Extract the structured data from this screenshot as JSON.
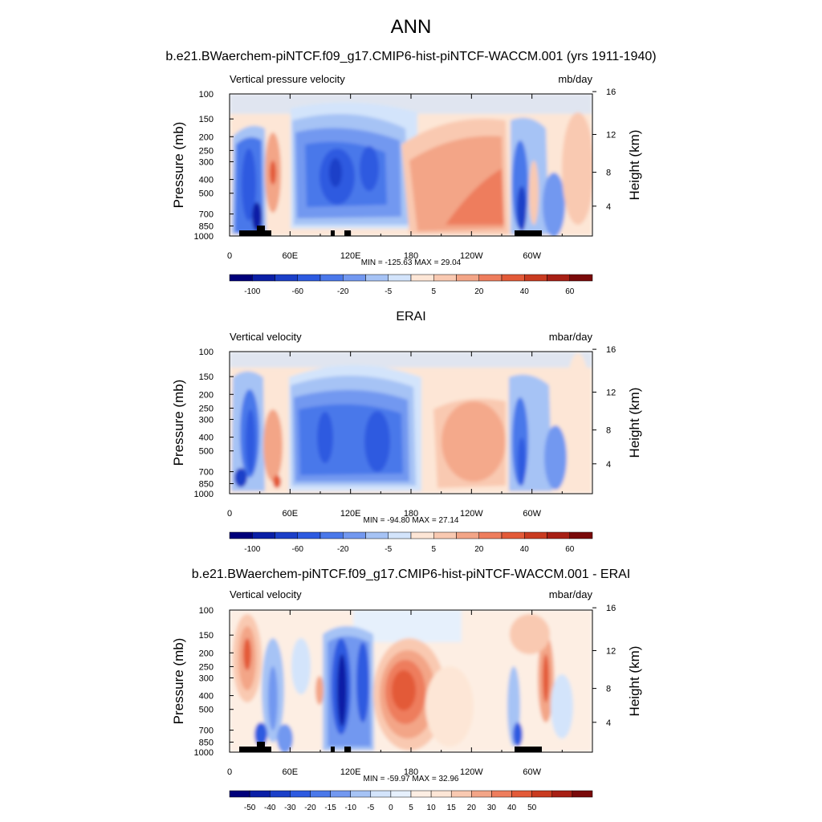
{
  "page": {
    "title": "ANN",
    "titles": [
      "b.e21.BWaerchem-piNTCF.f09_g17.CMIP6-hist-piNTCF-WACCM.001 (yrs 1911-1940)",
      "ERAI",
      "b.e21.BWaerchem-piNTCF.f09_g17.CMIP6-hist-piNTCF-WACCM.001 - ERAI"
    ]
  },
  "axes": {
    "ylabel_left": "Pressure (mb)",
    "ylabel_right": "Height (km)",
    "pressure_ticks": [
      "100",
      "150",
      "200",
      "250",
      "300",
      "400",
      "500",
      "700",
      "850",
      "1000"
    ],
    "height_ticks": [
      "16",
      "12",
      "8",
      "4"
    ],
    "lon_ticks": [
      "0",
      "60E",
      "120E",
      "180",
      "120W",
      "60W"
    ]
  },
  "panels": [
    {
      "var_label": "Vertical pressure velocity",
      "units": "mb/day",
      "minmax": "MIN = -125.63  MAX =  29.04",
      "colorbar_labels": [
        "-100",
        "-60",
        "-20",
        "-5",
        "5",
        "20",
        "40",
        "60"
      ]
    },
    {
      "var_label": "Vertical velocity",
      "units": "mbar/day",
      "minmax": "MIN = -94.80  MAX =  27.14",
      "colorbar_labels": [
        "-100",
        "-60",
        "-20",
        "-5",
        "5",
        "20",
        "40",
        "60"
      ]
    },
    {
      "var_label": "Vertical velocity",
      "units": "mbar/day",
      "minmax": "MIN = -59.97  MAX =  32.96",
      "colorbar_labels": [
        "-50",
        "-40",
        "-30",
        "-20",
        "-15",
        "-10",
        "-5",
        "0",
        "5",
        "10",
        "15",
        "20",
        "30",
        "40",
        "50"
      ]
    }
  ],
  "colors": {
    "colorbar_16": [
      "#00007a",
      "#0a1fa6",
      "#1b3fc8",
      "#2d5ae0",
      "#4a78ea",
      "#7298f0",
      "#a6c3f5",
      "#d3e4fb",
      "#fde6d6",
      "#f9c9b1",
      "#f3a587",
      "#ee7d5d",
      "#e35a38",
      "#c93b20",
      "#a71f14",
      "#7a0a0a"
    ],
    "colorbar_18": [
      "#00007a",
      "#0a1fa6",
      "#1b3fc8",
      "#2d5ae0",
      "#4a78ea",
      "#7298f0",
      "#a6c3f5",
      "#d3e4fb",
      "#e6f0fc",
      "#fdeee3",
      "#fde6d6",
      "#f9c9b1",
      "#f3a587",
      "#ee7d5d",
      "#e35a38",
      "#c93b20",
      "#a71f14",
      "#7a0a0a"
    ]
  },
  "chart_data": [
    {
      "type": "heatmap",
      "title": "b.e21.BWaerchem-piNTCF.f09_g17.CMIP6-hist-piNTCF-WACCM.001 (yrs 1911-1940)",
      "ylabel": "Pressure (mb)",
      "y2label": "Height (km)",
      "xticks": [
        "0",
        "60E",
        "120E",
        "180",
        "120W",
        "60W"
      ],
      "yticks": [
        100,
        150,
        200,
        250,
        300,
        400,
        500,
        700,
        850,
        1000
      ],
      "ylim": [
        1000,
        100
      ],
      "levels": [
        -100,
        -60,
        -20,
        -5,
        5,
        20,
        40,
        60
      ],
      "min": -125.63,
      "max": 29.04
    },
    {
      "type": "heatmap",
      "title": "ERAI",
      "ylabel": "Pressure (mb)",
      "y2label": "Height (km)",
      "xticks": [
        "0",
        "60E",
        "120E",
        "180",
        "120W",
        "60W"
      ],
      "yticks": [
        100,
        150,
        200,
        250,
        300,
        400,
        500,
        700,
        850,
        1000
      ],
      "ylim": [
        1000,
        100
      ],
      "levels": [
        -100,
        -60,
        -20,
        -5,
        5,
        20,
        40,
        60
      ],
      "min": -94.8,
      "max": 27.14
    },
    {
      "type": "heatmap",
      "title": "b.e21.BWaerchem-piNTCF.f09_g17.CMIP6-hist-piNTCF-WACCM.001 - ERAI",
      "ylabel": "Pressure (mb)",
      "y2label": "Height (km)",
      "xticks": [
        "0",
        "60E",
        "120E",
        "180",
        "120W",
        "60W"
      ],
      "yticks": [
        100,
        150,
        200,
        250,
        300,
        400,
        500,
        700,
        850,
        1000
      ],
      "ylim": [
        1000,
        100
      ],
      "levels": [
        -50,
        -40,
        -30,
        -20,
        -15,
        -10,
        -5,
        0,
        5,
        10,
        15,
        20,
        30,
        40,
        50
      ],
      "min": -59.97,
      "max": 32.96
    }
  ]
}
